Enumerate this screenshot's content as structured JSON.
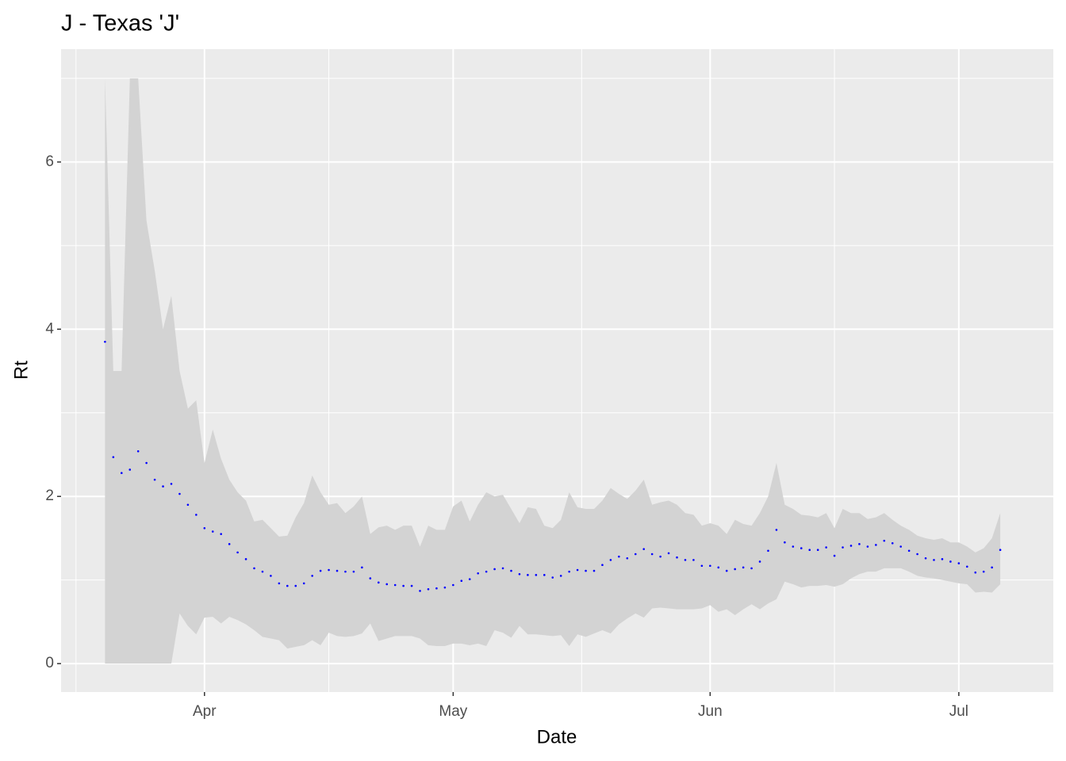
{
  "chart_data": {
    "type": "ribbon-points",
    "title": "J - Texas 'J'",
    "x_label": "Date",
    "y_label": "Rt",
    "xlim": [
      -17.3,
      102.4
    ],
    "ylim": [
      -0.34,
      7.35
    ],
    "xticks": [
      {
        "value": 0,
        "label": "Apr"
      },
      {
        "value": 30,
        "label": "May"
      },
      {
        "value": 61,
        "label": "Jun"
      },
      {
        "value": 91,
        "label": "Jul"
      }
    ],
    "xminor": [
      -15.5,
      15,
      45.5,
      76
    ],
    "yticks": [
      0,
      2,
      4,
      6
    ],
    "yminor": [
      1,
      3,
      5,
      7
    ],
    "grid": true,
    "point_color": "#0000ff",
    "band_color": "#d3d3d3",
    "panel_color": "#ebebeb",
    "x": [
      -12,
      -11,
      -10,
      -9,
      -8,
      -7,
      -6,
      -5,
      -4,
      -3,
      -2,
      -1,
      0,
      1,
      2,
      3,
      4,
      5,
      6,
      7,
      8,
      9,
      10,
      11,
      12,
      13,
      14,
      15,
      16,
      17,
      18,
      19,
      20,
      21,
      22,
      23,
      24,
      25,
      26,
      27,
      28,
      29,
      30,
      31,
      32,
      33,
      34,
      35,
      36,
      37,
      38,
      39,
      40,
      41,
      42,
      43,
      44,
      45,
      46,
      47,
      48,
      49,
      50,
      51,
      52,
      53,
      54,
      55,
      56,
      57,
      58,
      59,
      60,
      61,
      62,
      63,
      64,
      65,
      66,
      67,
      68,
      69,
      70,
      71,
      72,
      73,
      74,
      75,
      76,
      77,
      78,
      79,
      80,
      81,
      82,
      83,
      84,
      85,
      86,
      87,
      88,
      89,
      90,
      91,
      92,
      93,
      94,
      95,
      96
    ],
    "values": [
      3.85,
      2.47,
      2.28,
      2.32,
      2.54,
      2.4,
      2.2,
      2.12,
      2.15,
      2.03,
      1.9,
      1.78,
      1.62,
      1.58,
      1.55,
      1.43,
      1.33,
      1.25,
      1.14,
      1.1,
      1.05,
      0.96,
      0.93,
      0.93,
      0.96,
      1.05,
      1.11,
      1.12,
      1.11,
      1.1,
      1.1,
      1.15,
      1.02,
      0.97,
      0.95,
      0.94,
      0.93,
      0.93,
      0.87,
      0.89,
      0.9,
      0.91,
      0.94,
      0.99,
      1.01,
      1.08,
      1.1,
      1.13,
      1.14,
      1.11,
      1.07,
      1.06,
      1.06,
      1.06,
      1.03,
      1.05,
      1.1,
      1.12,
      1.11,
      1.11,
      1.18,
      1.24,
      1.28,
      1.26,
      1.31,
      1.37,
      1.31,
      1.28,
      1.32,
      1.27,
      1.24,
      1.24,
      1.17,
      1.17,
      1.15,
      1.11,
      1.13,
      1.15,
      1.14,
      1.22,
      1.35,
      1.6,
      1.45,
      1.4,
      1.38,
      1.36,
      1.36,
      1.39,
      1.29,
      1.39,
      1.41,
      1.43,
      1.4,
      1.42,
      1.47,
      1.44,
      1.4,
      1.35,
      1.31,
      1.26,
      1.24,
      1.25,
      1.22,
      1.2,
      1.16,
      1.09,
      1.1,
      1.15,
      1.36
    ],
    "upper": [
      7.0,
      3.5,
      3.5,
      7.0,
      7.0,
      5.3,
      4.7,
      4.0,
      4.4,
      3.5,
      3.05,
      3.15,
      2.4,
      2.8,
      2.45,
      2.2,
      2.05,
      1.95,
      1.7,
      1.72,
      1.62,
      1.52,
      1.53,
      1.75,
      1.92,
      2.25,
      2.05,
      1.9,
      1.92,
      1.8,
      1.88,
      2.0,
      1.55,
      1.63,
      1.65,
      1.6,
      1.65,
      1.65,
      1.4,
      1.65,
      1.6,
      1.6,
      1.88,
      1.95,
      1.7,
      1.9,
      2.05,
      2.0,
      2.02,
      1.85,
      1.68,
      1.87,
      1.85,
      1.65,
      1.62,
      1.72,
      2.05,
      1.87,
      1.85,
      1.85,
      1.95,
      2.1,
      2.03,
      1.97,
      2.07,
      2.2,
      1.9,
      1.93,
      1.95,
      1.9,
      1.8,
      1.78,
      1.65,
      1.68,
      1.65,
      1.55,
      1.72,
      1.67,
      1.65,
      1.8,
      2.0,
      2.4,
      1.9,
      1.85,
      1.78,
      1.77,
      1.75,
      1.8,
      1.62,
      1.85,
      1.8,
      1.8,
      1.73,
      1.75,
      1.8,
      1.72,
      1.65,
      1.6,
      1.53,
      1.5,
      1.48,
      1.5,
      1.45,
      1.45,
      1.4,
      1.33,
      1.38,
      1.5,
      1.8
    ],
    "lower": [
      0,
      0,
      0,
      0,
      0,
      0,
      0,
      0,
      0,
      0.6,
      0.45,
      0.35,
      0.55,
      0.56,
      0.48,
      0.56,
      0.52,
      0.47,
      0.4,
      0.32,
      0.3,
      0.28,
      0.18,
      0.2,
      0.22,
      0.28,
      0.22,
      0.37,
      0.33,
      0.32,
      0.33,
      0.36,
      0.48,
      0.27,
      0.3,
      0.33,
      0.33,
      0.33,
      0.3,
      0.22,
      0.21,
      0.21,
      0.24,
      0.24,
      0.22,
      0.24,
      0.21,
      0.4,
      0.37,
      0.31,
      0.45,
      0.35,
      0.35,
      0.34,
      0.33,
      0.34,
      0.21,
      0.35,
      0.32,
      0.36,
      0.4,
      0.36,
      0.47,
      0.54,
      0.6,
      0.55,
      0.66,
      0.67,
      0.66,
      0.65,
      0.65,
      0.65,
      0.66,
      0.7,
      0.62,
      0.65,
      0.58,
      0.65,
      0.71,
      0.65,
      0.72,
      0.77,
      0.98,
      0.95,
      0.91,
      0.93,
      0.93,
      0.94,
      0.92,
      0.95,
      1.02,
      1.07,
      1.1,
      1.1,
      1.14,
      1.14,
      1.14,
      1.1,
      1.05,
      1.03,
      1.02,
      1.0,
      0.98,
      0.96,
      0.95,
      0.85,
      0.86,
      0.85,
      0.95
    ]
  }
}
